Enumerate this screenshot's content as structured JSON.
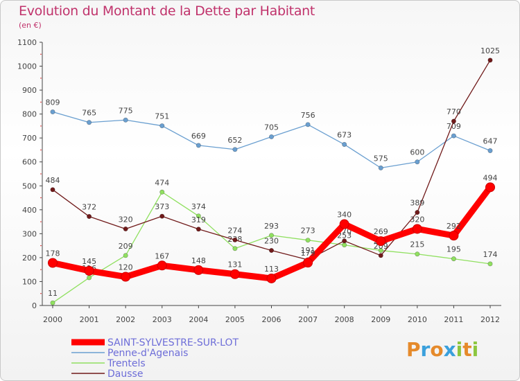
{
  "chart_data": {
    "type": "line",
    "title": "Evolution du Montant de la Dette par Habitant",
    "subtitle": "(en €)",
    "x": [
      "2000",
      "2001",
      "2002",
      "2003",
      "2004",
      "2005",
      "2006",
      "2007",
      "2008",
      "2009",
      "2010",
      "2011",
      "2012"
    ],
    "ylim": [
      0,
      1100
    ],
    "yticks": [
      0,
      100,
      200,
      300,
      400,
      500,
      600,
      700,
      800,
      900,
      1000,
      1100
    ],
    "grid": false,
    "legend_position": "bottom-left",
    "series": [
      {
        "name": "SAINT-SYLVESTRE-SUR-LOT",
        "color": "#ff0000",
        "values": [
          178,
          145,
          120,
          167,
          148,
          131,
          113,
          179,
          340,
          269,
          320,
          292,
          494
        ]
      },
      {
        "name": "Penne-d'Agenais",
        "color": "#6a9fd0",
        "values": [
          809,
          765,
          775,
          751,
          669,
          652,
          705,
          756,
          673,
          575,
          600,
          709,
          647
        ]
      },
      {
        "name": "Trentels",
        "color": "#90e060",
        "values": [
          11,
          116,
          209,
          474,
          374,
          238,
          293,
          273,
          253,
          230,
          215,
          195,
          174
        ]
      },
      {
        "name": "Dausse",
        "color": "#701a1a",
        "values": [
          484,
          372,
          320,
          373,
          319,
          274,
          230,
          191,
          270,
          209,
          389,
          770,
          1025
        ]
      }
    ]
  },
  "logo": {
    "letters": [
      "P",
      "r",
      "o",
      "x",
      "i",
      "t",
      "i"
    ],
    "colors": [
      "#e58a2b",
      "#3aa0dc",
      "#e58a2b",
      "#3aa0dc",
      "#8cc63f",
      "#e58a2b",
      "#8cc63f"
    ]
  }
}
